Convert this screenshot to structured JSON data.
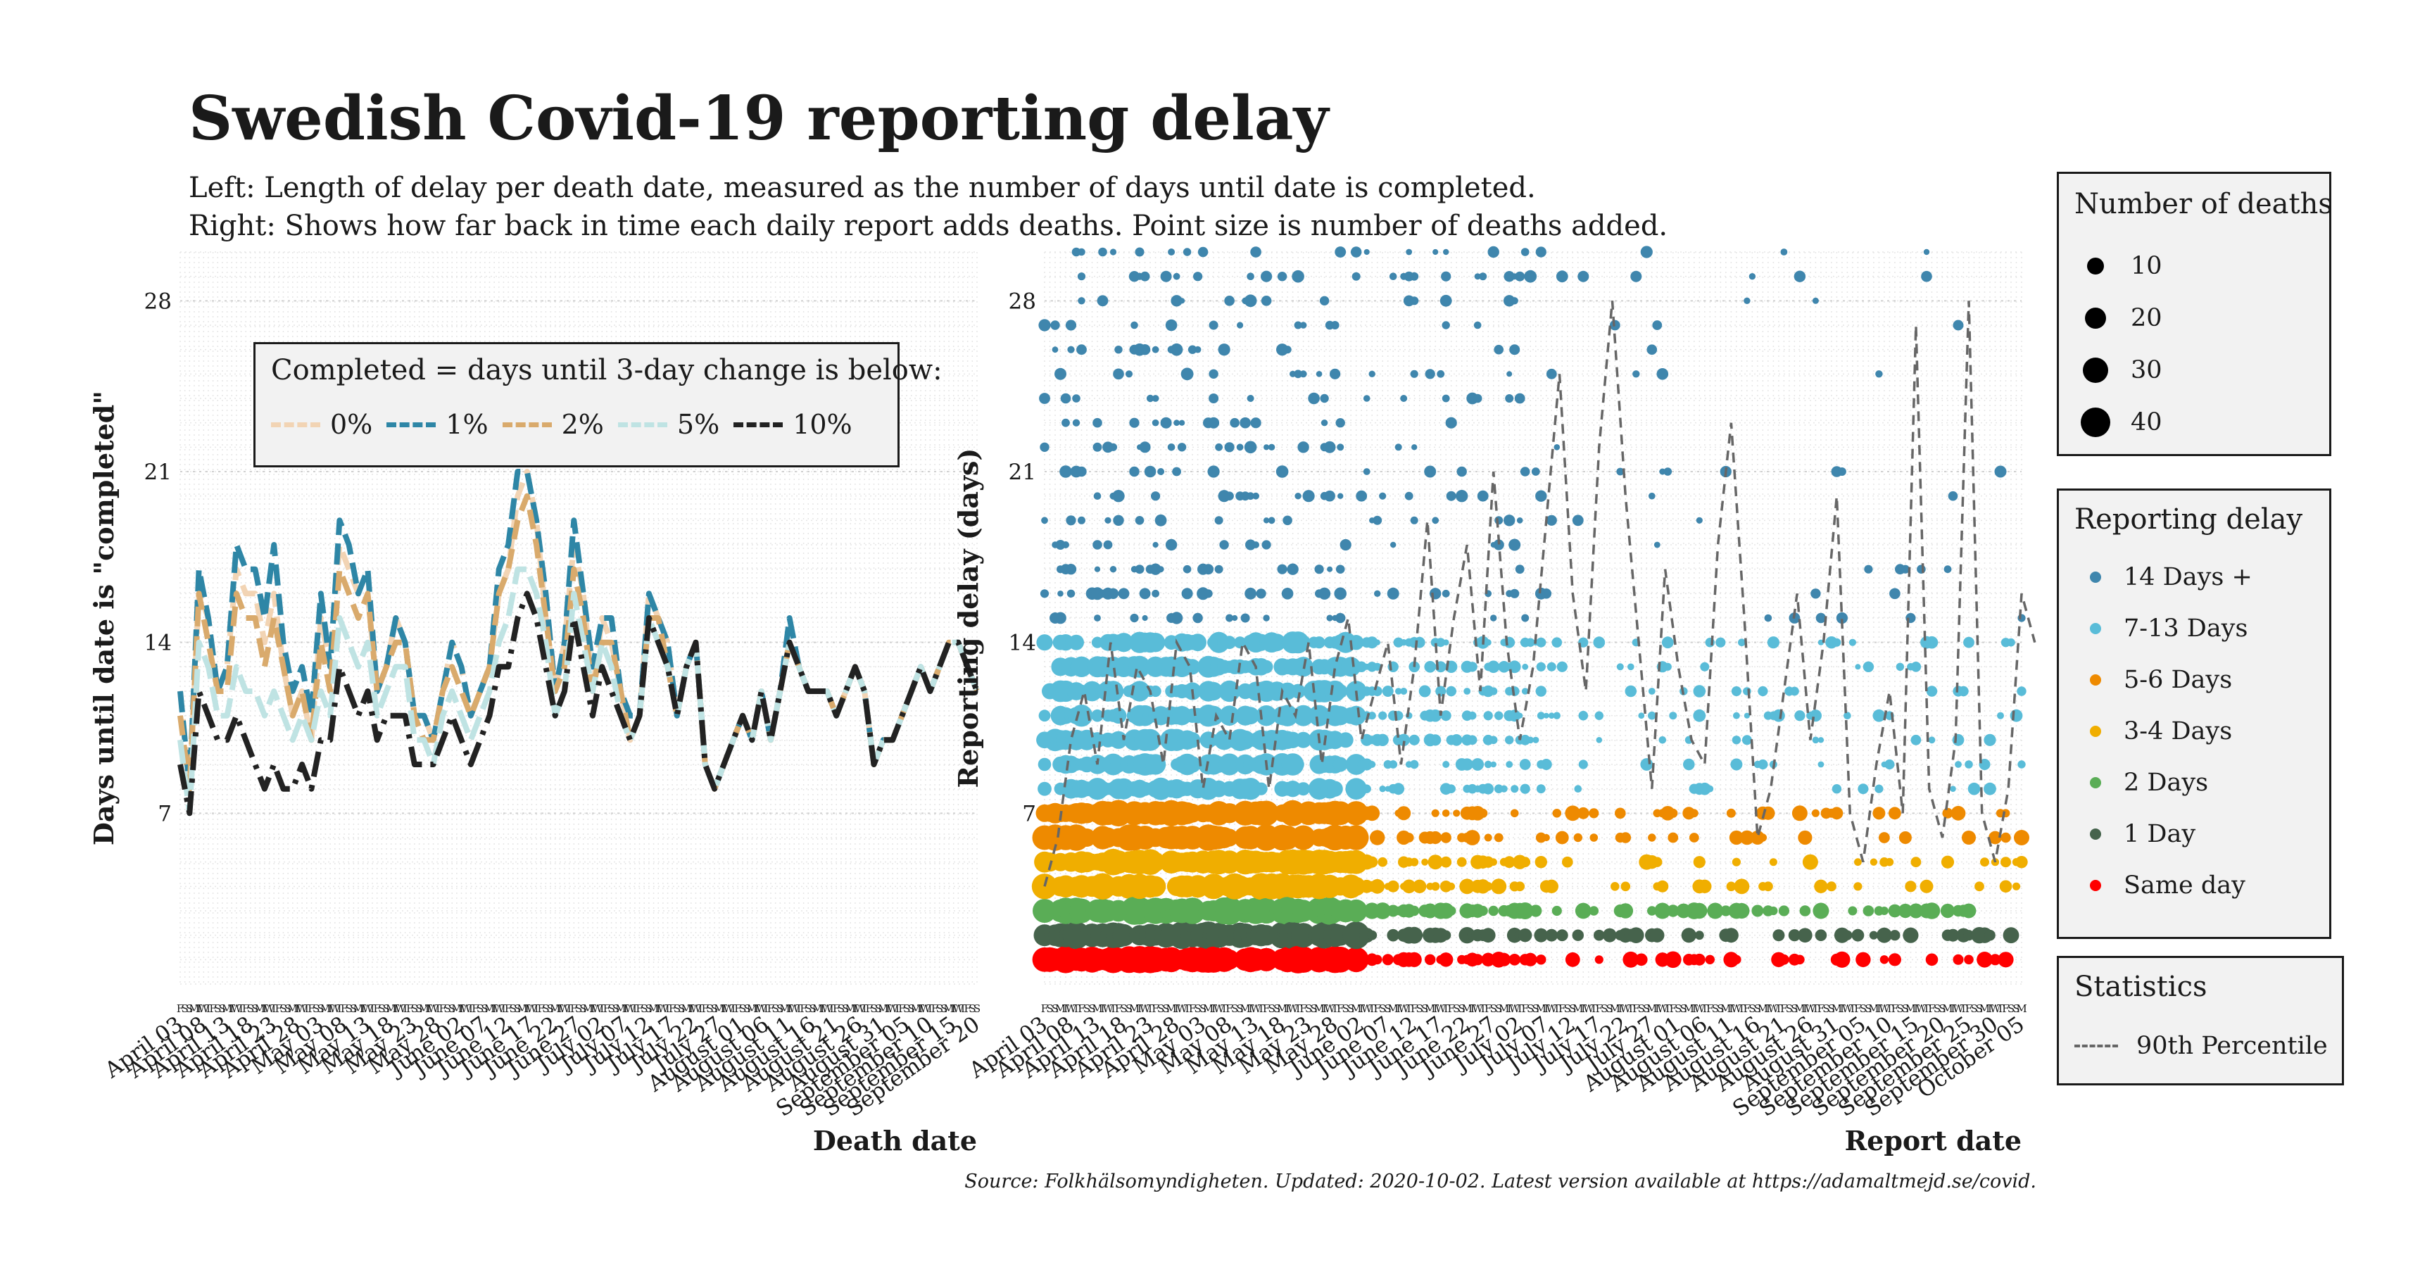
{
  "header": {
    "title": "Swedish Covid-19 reporting delay",
    "subtitle_1": "Left: Length of delay per death date, measured as the number of days until date is completed.",
    "subtitle_2": "Right: Shows how far back in time each daily report adds deaths. Point size is number of deaths added."
  },
  "caption": "Source: Folkhälsomyndigheten. Updated: 2020-10-02. Latest version available at https://adamaltmejd.se/covid.",
  "left_legend": {
    "title": "Completed = days until 3-day change is below:",
    "items": [
      {
        "label": "0%",
        "color": "#f2d4b4"
      },
      {
        "label": "1%",
        "color": "#2e86a6"
      },
      {
        "label": "2%",
        "color": "#d9aa6c"
      },
      {
        "label": "5%",
        "color": "#bfe3e3"
      },
      {
        "label": "10%",
        "color": "#222222"
      }
    ]
  },
  "size_legend": {
    "title": "Number of deaths",
    "items": [
      {
        "label": "10",
        "value": 10
      },
      {
        "label": "20",
        "value": 20
      },
      {
        "label": "30",
        "value": 30
      },
      {
        "label": "40",
        "value": 40
      }
    ]
  },
  "delay_legend": {
    "title": "Reporting delay",
    "items": [
      {
        "label": "14 Days +",
        "color": "#3f86ad"
      },
      {
        "label": "7-13 Days",
        "color": "#59bcd8"
      },
      {
        "label": "5-6 Days",
        "color": "#ee8a00"
      },
      {
        "label": "3-4 Days",
        "color": "#f0ae00"
      },
      {
        "label": "2 Days",
        "color": "#5aad56"
      },
      {
        "label": "1 Day",
        "color": "#46634c"
      },
      {
        "label": "Same day",
        "color": "#ff0000"
      }
    ]
  },
  "stats_legend": {
    "title": "Statistics",
    "items": [
      {
        "label": "90th Percentile",
        "color": "#666666"
      }
    ]
  },
  "chart_data": [
    {
      "type": "line",
      "xlabel": "Death date",
      "ylabel": "Days until date is \"completed\"",
      "x_range": [
        "2020-04-03",
        "2020-09-20"
      ],
      "ylim": [
        0,
        30
      ],
      "yticks": [
        7,
        14,
        21,
        28
      ],
      "xticks": [
        "April 03",
        "April 08",
        "April 13",
        "April 18",
        "April 23",
        "April 28",
        "May 03",
        "May 08",
        "May 13",
        "May 18",
        "May 23",
        "May 28",
        "June 02",
        "June 07",
        "June 12",
        "June 17",
        "June 22",
        "June 27",
        "July 02",
        "July 07",
        "July 12",
        "July 17",
        "July 22",
        "July 27",
        "August 01",
        "August 06",
        "August 11",
        "August 16",
        "August 21",
        "August 26",
        "August 31",
        "September 05",
        "September 10",
        "September 15",
        "September 20"
      ],
      "weekday_strip": "SMTWTFS",
      "x": [
        "2020-04-03",
        "2020-04-05",
        "2020-04-07",
        "2020-04-09",
        "2020-04-11",
        "2020-04-13",
        "2020-04-15",
        "2020-04-17",
        "2020-04-19",
        "2020-04-21",
        "2020-04-23",
        "2020-04-25",
        "2020-04-27",
        "2020-04-29",
        "2020-05-01",
        "2020-05-03",
        "2020-05-05",
        "2020-05-07",
        "2020-05-09",
        "2020-05-11",
        "2020-05-13",
        "2020-05-15",
        "2020-05-17",
        "2020-05-19",
        "2020-05-21",
        "2020-05-23",
        "2020-05-25",
        "2020-05-27",
        "2020-05-29",
        "2020-05-31",
        "2020-06-02",
        "2020-06-04",
        "2020-06-06",
        "2020-06-08",
        "2020-06-10",
        "2020-06-12",
        "2020-06-14",
        "2020-06-16",
        "2020-06-18",
        "2020-06-20",
        "2020-06-22",
        "2020-06-24",
        "2020-06-26",
        "2020-06-28",
        "2020-06-30",
        "2020-07-02",
        "2020-07-04",
        "2020-07-06",
        "2020-07-08",
        "2020-07-10",
        "2020-07-12",
        "2020-07-14",
        "2020-07-16",
        "2020-07-18",
        "2020-07-20",
        "2020-07-22",
        "2020-07-24",
        "2020-07-26",
        "2020-07-28",
        "2020-07-30",
        "2020-08-01",
        "2020-08-03",
        "2020-08-05",
        "2020-08-07",
        "2020-08-09",
        "2020-08-11",
        "2020-08-13",
        "2020-08-15",
        "2020-08-17",
        "2020-08-19",
        "2020-08-21",
        "2020-08-23",
        "2020-08-25",
        "2020-08-27",
        "2020-08-29",
        "2020-08-31",
        "2020-09-02",
        "2020-09-04",
        "2020-09-06",
        "2020-09-08",
        "2020-09-10",
        "2020-09-12",
        "2020-09-14",
        "2020-09-16",
        "2020-09-18",
        "2020-09-20"
      ],
      "series": [
        {
          "name": "0%",
          "color": "#f2d4b4",
          "values": [
            12,
            8,
            16,
            15,
            12,
            13,
            17,
            16,
            16,
            14,
            16,
            13,
            11,
            12,
            10,
            15,
            13,
            18,
            17,
            16,
            16,
            12,
            13,
            15,
            14,
            11,
            11,
            10,
            12,
            14,
            13,
            11,
            12,
            13,
            16,
            17,
            20,
            21,
            19,
            15,
            12,
            14,
            18,
            16,
            12,
            15,
            14,
            12,
            10,
            11,
            16,
            15,
            14,
            11,
            13,
            14,
            9,
            8,
            9,
            10,
            11,
            10,
            12,
            10,
            12,
            14,
            13,
            12,
            12,
            12,
            11,
            12,
            13,
            12,
            9,
            10,
            10,
            11,
            12,
            13,
            12,
            13,
            14,
            14,
            13,
            12
          ]
        },
        {
          "name": "1%",
          "color": "#2e86a6",
          "values": [
            12,
            8,
            17,
            15,
            12,
            13,
            18,
            17,
            17,
            15,
            18,
            14,
            12,
            13,
            11,
            16,
            13,
            19,
            18,
            16,
            17,
            12,
            13,
            15,
            14,
            11,
            11,
            10,
            12,
            14,
            13,
            11,
            12,
            13,
            17,
            18,
            21,
            21,
            19,
            16,
            12,
            14,
            19,
            16,
            13,
            15,
            15,
            12,
            11,
            11,
            16,
            15,
            14,
            11,
            13,
            14,
            9,
            8,
            9,
            10,
            11,
            10,
            12,
            10,
            12,
            15,
            13,
            12,
            12,
            12,
            11,
            12,
            13,
            12,
            9,
            10,
            10,
            11,
            12,
            13,
            12,
            13,
            14,
            14,
            13,
            12
          ]
        },
        {
          "name": "2%",
          "color": "#d9aa6c",
          "values": [
            11,
            8,
            16,
            14,
            12,
            12,
            16,
            15,
            15,
            13,
            15,
            13,
            11,
            12,
            10,
            14,
            12,
            17,
            16,
            15,
            16,
            12,
            13,
            14,
            14,
            11,
            10,
            10,
            12,
            13,
            12,
            11,
            12,
            13,
            16,
            17,
            19,
            20,
            18,
            15,
            12,
            13,
            17,
            15,
            12,
            14,
            14,
            12,
            10,
            11,
            15,
            15,
            13,
            11,
            13,
            14,
            9,
            8,
            9,
            10,
            11,
            10,
            12,
            10,
            12,
            14,
            13,
            12,
            12,
            12,
            11,
            12,
            13,
            12,
            9,
            10,
            10,
            11,
            12,
            13,
            12,
            13,
            14,
            14,
            13,
            12
          ]
        },
        {
          "name": "5%",
          "color": "#bfe3e3",
          "values": [
            10,
            7,
            14,
            13,
            11,
            11,
            13,
            12,
            12,
            11,
            12,
            11,
            10,
            11,
            10,
            12,
            11,
            15,
            14,
            13,
            14,
            11,
            12,
            13,
            13,
            10,
            10,
            9,
            11,
            12,
            11,
            10,
            11,
            12,
            14,
            15,
            17,
            17,
            16,
            14,
            11,
            12,
            16,
            14,
            12,
            14,
            13,
            11,
            10,
            11,
            15,
            14,
            13,
            11,
            13,
            14,
            9,
            8,
            9,
            10,
            11,
            10,
            12,
            10,
            12,
            14,
            13,
            12,
            12,
            12,
            11,
            12,
            13,
            12,
            9,
            10,
            10,
            11,
            12,
            13,
            12,
            13,
            14,
            14,
            13,
            12
          ]
        },
        {
          "name": "10%",
          "color": "#222222",
          "values": [
            9,
            7,
            12,
            11,
            10,
            10,
            11,
            10,
            9,
            8,
            9,
            8,
            8,
            9,
            8,
            10,
            10,
            13,
            12,
            11,
            12,
            10,
            11,
            11,
            11,
            9,
            9,
            9,
            10,
            11,
            10,
            9,
            10,
            11,
            13,
            13,
            15,
            16,
            15,
            13,
            11,
            12,
            15,
            13,
            11,
            13,
            12,
            11,
            10,
            11,
            15,
            14,
            13,
            11,
            13,
            14,
            9,
            8,
            9,
            10,
            11,
            10,
            12,
            10,
            12,
            14,
            13,
            12,
            12,
            12,
            11,
            12,
            13,
            12,
            9,
            10,
            10,
            11,
            12,
            13,
            12,
            13,
            14,
            14,
            13,
            12
          ]
        }
      ]
    },
    {
      "type": "scatter",
      "xlabel": "Report date",
      "ylabel": "Reporting delay (days)",
      "x_range": [
        "2020-04-03",
        "2020-10-05"
      ],
      "ylim": [
        0,
        30
      ],
      "yticks": [
        7,
        14,
        21,
        28
      ],
      "xticks": [
        "April 03",
        "April 08",
        "April 13",
        "April 18",
        "April 23",
        "April 28",
        "May 03",
        "May 08",
        "May 13",
        "May 18",
        "May 23",
        "May 28",
        "June 02",
        "June 07",
        "June 12",
        "June 17",
        "June 22",
        "June 27",
        "July 02",
        "July 07",
        "July 12",
        "July 17",
        "July 22",
        "July 27",
        "August 01",
        "August 06",
        "August 11",
        "August 16",
        "August 21",
        "August 26",
        "August 31",
        "September 05",
        "September 10",
        "September 15",
        "September 20",
        "September 25",
        "September 30",
        "October 05"
      ],
      "weekday_strip": "SMTWTFS",
      "series": [
        {
          "name": "Same day",
          "delay_range": [
            0,
            0
          ],
          "color": "#ff0000"
        },
        {
          "name": "1 Day",
          "delay_range": [
            1,
            1
          ],
          "color": "#46634c"
        },
        {
          "name": "2 Days",
          "delay_range": [
            2,
            2
          ],
          "color": "#5aad56"
        },
        {
          "name": "3-4 Days",
          "delay_range": [
            3,
            4
          ],
          "color": "#f0ae00"
        },
        {
          "name": "5-6 Days",
          "delay_range": [
            5,
            6
          ],
          "color": "#ee8a00"
        },
        {
          "name": "7-13 Days",
          "delay_range": [
            7,
            13
          ],
          "color": "#59bcd8"
        },
        {
          "name": "14 Days +",
          "delay_range": [
            14,
            30
          ],
          "color": "#3f86ad"
        }
      ],
      "p90": [
        4,
        6,
        10,
        12,
        9,
        14,
        10,
        13,
        12,
        9,
        14,
        13,
        8,
        11,
        10,
        14,
        13,
        8,
        12,
        11,
        14,
        9,
        13,
        15,
        10,
        12,
        14,
        9,
        13,
        19,
        11,
        15,
        18,
        12,
        21,
        14,
        10,
        13,
        19,
        25,
        16,
        12,
        22,
        28,
        20,
        14,
        8,
        17,
        13,
        10,
        9,
        18,
        23,
        15,
        6,
        8,
        12,
        16,
        10,
        14,
        20,
        7,
        5,
        9,
        12,
        7,
        27,
        8,
        6,
        10,
        28,
        7,
        5,
        8,
        16,
        14
      ]
    }
  ]
}
